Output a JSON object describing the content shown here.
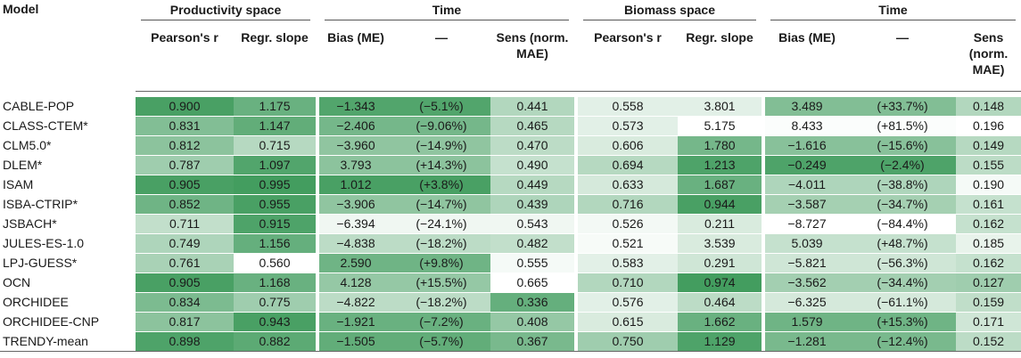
{
  "headers": {
    "model": "Model",
    "productivity_space": "Productivity space",
    "time": "Time",
    "biomass_space": "Biomass space",
    "pearson_r": "Pearson's r",
    "regr_slope": "Regr. slope",
    "bias_me": "Bias (ME)",
    "dash": "—",
    "sens": "Sens (norm. MAE)"
  },
  "colors": {
    "scale_light": "#ffffff",
    "scale_dark": "#3f9b5c"
  },
  "rows": [
    {
      "model": "CABLE-POP",
      "p_r": "0.900",
      "p_slope": "1.175",
      "t1_bias": "−1.343",
      "t1_pct": "(−5.1%)",
      "t1_sens": "0.441",
      "b_r": "0.558",
      "b_slope": "3.801",
      "t2_bias": "3.489",
      "t2_pct": "(+33.7%)",
      "t2_sens": "0.148",
      "shade": [
        0.95,
        0.78,
        0.9,
        0.9,
        0.4,
        0.15,
        0.15,
        0.65,
        0.65,
        0.4
      ]
    },
    {
      "model": "CLASS-CTEM*",
      "p_r": "0.831",
      "p_slope": "1.147",
      "t1_bias": "−2.406",
      "t1_pct": "(−9.06%)",
      "t1_sens": "0.465",
      "b_r": "0.573",
      "b_slope": "5.175",
      "t2_bias": "8.433",
      "t2_pct": "(+81.5%)",
      "t2_sens": "0.196",
      "shade": [
        0.65,
        0.82,
        0.72,
        0.72,
        0.38,
        0.15,
        0.0,
        0.02,
        0.02,
        0.0
      ]
    },
    {
      "model": "CLM5.0*",
      "p_r": "0.812",
      "p_slope": "0.715",
      "t1_bias": "−3.960",
      "t1_pct": "(−14.9%)",
      "t1_sens": "0.470",
      "b_r": "0.606",
      "b_slope": "1.780",
      "t2_bias": "−1.616",
      "t2_pct": "(−15.6%)",
      "t2_sens": "0.149",
      "shade": [
        0.6,
        0.38,
        0.58,
        0.58,
        0.35,
        0.2,
        0.72,
        0.62,
        0.62,
        0.38
      ]
    },
    {
      "model": "DLEM*",
      "p_r": "0.787",
      "p_slope": "1.097",
      "t1_bias": "3.793",
      "t1_pct": "(+14.3%)",
      "t1_sens": "0.490",
      "b_r": "0.694",
      "b_slope": "1.213",
      "t2_bias": "−0.249",
      "t2_pct": "(−2.4%)",
      "t2_sens": "0.155",
      "shade": [
        0.5,
        0.9,
        0.6,
        0.6,
        0.3,
        0.38,
        0.92,
        0.92,
        0.92,
        0.35
      ]
    },
    {
      "model": "ISAM",
      "p_r": "0.905",
      "p_slope": "0.995",
      "t1_bias": "1.012",
      "t1_pct": "(+3.8%)",
      "t1_sens": "0.449",
      "b_r": "0.633",
      "b_slope": "1.687",
      "t2_bias": "−4.011",
      "t2_pct": "(−38.8%)",
      "t2_sens": "0.190",
      "shade": [
        0.95,
        0.98,
        0.95,
        0.95,
        0.38,
        0.22,
        0.78,
        0.42,
        0.42,
        0.05
      ]
    },
    {
      "model": "ISBA-CTRIP*",
      "p_r": "0.852",
      "p_slope": "0.955",
      "t1_bias": "−3.906",
      "t1_pct": "(−14.7%)",
      "t1_sens": "0.439",
      "b_r": "0.716",
      "b_slope": "0.944",
      "t2_bias": "−3.587",
      "t2_pct": "(−34.7%)",
      "t2_sens": "0.161",
      "shade": [
        0.75,
        0.95,
        0.58,
        0.58,
        0.42,
        0.4,
        0.95,
        0.47,
        0.47,
        0.3
      ]
    },
    {
      "model": "JSBACH*",
      "p_r": "0.711",
      "p_slope": "0.915",
      "t1_bias": "−6.394",
      "t1_pct": "(−24.1%)",
      "t1_sens": "0.543",
      "b_r": "0.526",
      "b_slope": "0.211",
      "t2_bias": "−8.727",
      "t2_pct": "(−84.4%)",
      "t2_sens": "0.162",
      "shade": [
        0.32,
        0.92,
        0.08,
        0.08,
        0.08,
        0.06,
        0.2,
        0.0,
        0.0,
        0.3
      ]
    },
    {
      "model": "JULES-ES-1.0",
      "p_r": "0.749",
      "p_slope": "1.156",
      "t1_bias": "−4.838",
      "t1_pct": "(−18.2%)",
      "t1_sens": "0.482",
      "b_r": "0.521",
      "b_slope": "3.539",
      "t2_bias": "5.039",
      "t2_pct": "(+48.7%)",
      "t2_sens": "0.185",
      "shade": [
        0.42,
        0.8,
        0.35,
        0.35,
        0.32,
        0.04,
        0.2,
        0.3,
        0.3,
        0.12
      ]
    },
    {
      "model": "LPJ-GUESS*",
      "p_r": "0.761",
      "p_slope": "0.560",
      "t1_bias": "2.590",
      "t1_pct": "(+9.8%)",
      "t1_sens": "0.555",
      "b_r": "0.583",
      "b_slope": "0.291",
      "t2_bias": "−5.821",
      "t2_pct": "(−56.3%)",
      "t2_sens": "0.162",
      "shade": [
        0.45,
        0.0,
        0.75,
        0.75,
        0.05,
        0.15,
        0.25,
        0.25,
        0.25,
        0.3
      ]
    },
    {
      "model": "OCN",
      "p_r": "0.905",
      "p_slope": "1.168",
      "t1_bias": "4.128",
      "t1_pct": "(+15.5%)",
      "t1_sens": "0.665",
      "b_r": "0.710",
      "b_slope": "0.974",
      "t2_bias": "−3.562",
      "t2_pct": "(−34.4%)",
      "t2_sens": "0.127",
      "shade": [
        0.95,
        0.78,
        0.55,
        0.55,
        0.0,
        0.4,
        0.98,
        0.48,
        0.48,
        0.5
      ]
    },
    {
      "model": "ORCHIDEE",
      "p_r": "0.834",
      "p_slope": "0.775",
      "t1_bias": "−4.822",
      "t1_pct": "(−18.2%)",
      "t1_sens": "0.336",
      "b_r": "0.576",
      "b_slope": "0.464",
      "t2_bias": "−6.325",
      "t2_pct": "(−61.1%)",
      "t2_sens": "0.159",
      "shade": [
        0.68,
        0.5,
        0.35,
        0.35,
        0.8,
        0.15,
        0.35,
        0.22,
        0.22,
        0.33
      ]
    },
    {
      "model": "ORCHIDEE-CNP",
      "p_r": "0.817",
      "p_slope": "0.943",
      "t1_bias": "−1.921",
      "t1_pct": "(−7.2%)",
      "t1_sens": "0.408",
      "b_r": "0.615",
      "b_slope": "1.662",
      "t2_bias": "1.579",
      "t2_pct": "(+15.3%)",
      "t2_sens": "0.171",
      "shade": [
        0.6,
        0.95,
        0.78,
        0.78,
        0.55,
        0.2,
        0.78,
        0.75,
        0.75,
        0.25
      ]
    },
    {
      "model": "TRENDY-mean",
      "p_r": "0.898",
      "p_slope": "0.882",
      "t1_bias": "−1.505",
      "t1_pct": "(−5.7%)",
      "t1_sens": "0.367",
      "b_r": "0.750",
      "b_slope": "1.129",
      "t2_bias": "−1.281",
      "t2_pct": "(−12.4%)",
      "t2_sens": "0.152",
      "shade": [
        0.92,
        0.85,
        0.82,
        0.82,
        0.7,
        0.5,
        0.92,
        0.7,
        0.7,
        0.35
      ]
    }
  ]
}
